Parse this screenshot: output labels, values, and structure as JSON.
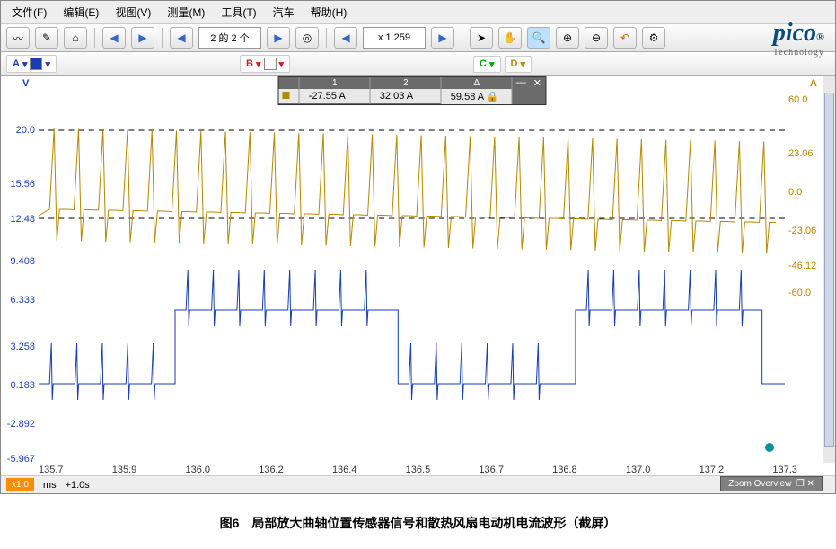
{
  "menu": {
    "file": "文件(F)",
    "edit": "编辑(E)",
    "view": "视图(V)",
    "measure": "测量(M)",
    "tools": "工具(T)",
    "auto": "汽车",
    "help": "帮助(H)"
  },
  "nav": {
    "pager": "2 的 2 个",
    "zoom": "x 1.259"
  },
  "channels": {
    "a": "A",
    "b": "B",
    "c": "C",
    "d": "D"
  },
  "ruler": {
    "h1": "1",
    "h2": "2",
    "hd": "Δ",
    "v1": "-27.55 A",
    "v2": "32.03 A",
    "vd": "59.58 A"
  },
  "axes": {
    "left_unit": "V",
    "right_unit": "A",
    "left_ticks": [
      {
        "v": "20.0",
        "p": 14
      },
      {
        "v": "15.56",
        "p": 28
      },
      {
        "v": "12.48",
        "p": 37
      },
      {
        "v": "9.408",
        "p": 48
      },
      {
        "v": "6.333",
        "p": 58
      },
      {
        "v": "3.258",
        "p": 70
      },
      {
        "v": "0.183",
        "p": 80
      },
      {
        "v": "-2.892",
        "p": 90
      },
      {
        "v": "-5.967",
        "p": 99
      }
    ],
    "right_ticks": [
      {
        "v": "60.0",
        "p": 6
      },
      {
        "v": "23.06",
        "p": 20
      },
      {
        "v": "0.0",
        "p": 30
      },
      {
        "v": "-23.06",
        "p": 40
      },
      {
        "v": "-46.12",
        "p": 49
      },
      {
        "v": "-60.0",
        "p": 56
      }
    ],
    "x_ticks": [
      "135.7",
      "135.9",
      "136.0",
      "136.2",
      "136.4",
      "136.5",
      "136.7",
      "136.8",
      "137.0",
      "137.2",
      "137.3"
    ]
  },
  "colors": {
    "chA": "#1a3db5",
    "chD": "#b58900",
    "dash": "#000",
    "grid": "#eee",
    "bg": "#ffffff"
  },
  "footer": {
    "xmult": "x1.0",
    "unit": "ms",
    "offset": "+1.0s",
    "zoomov": "Zoom Overview"
  },
  "logo": {
    "brand": "pico",
    "sub": "Technology"
  },
  "caption": "图6　局部放大曲轴位置传感器信号和散热风扇电动机电流波形（截屏）"
}
